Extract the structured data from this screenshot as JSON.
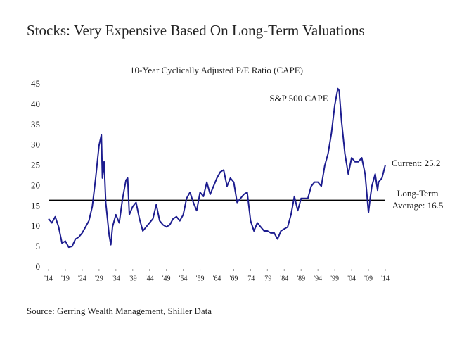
{
  "chart_data": {
    "type": "line",
    "title": "Stocks: Very Expensive Based On Long-Term Valuations",
    "subtitle": "10-Year Cyclically Adjusted P/E Ratio (CAPE)",
    "source": "Source: Gerring Wealth Management, Shiller Data",
    "x": [
      1914,
      1915,
      1916,
      1917,
      1918,
      1919,
      1920,
      1921,
      1922,
      1923,
      1924,
      1925,
      1926,
      1927,
      1928,
      1929,
      1929.7,
      1930,
      1930.5,
      1931,
      1932,
      1932.5,
      1933,
      1934,
      1935,
      1936,
      1937,
      1937.5,
      1938,
      1939,
      1940,
      1941,
      1942,
      1943,
      1944,
      1945,
      1946,
      1947,
      1948,
      1949,
      1950,
      1951,
      1952,
      1953,
      1954,
      1955,
      1956,
      1957,
      1958,
      1959,
      1960,
      1961,
      1962,
      1963,
      1964,
      1965,
      1966,
      1967,
      1968,
      1969,
      1970,
      1971,
      1972,
      1973,
      1974,
      1975,
      1976,
      1977,
      1978,
      1979,
      1980,
      1981,
      1982,
      1983,
      1984,
      1985,
      1986,
      1987,
      1988,
      1989,
      1990,
      1991,
      1992,
      1993,
      1994,
      1995,
      1996,
      1997,
      1998,
      1999,
      1999.9,
      2000.3,
      2001,
      2002,
      2003,
      2004,
      2005,
      2006,
      2007,
      2008,
      2009,
      2009.5,
      2010,
      2011,
      2011.7,
      2012,
      2013,
      2014
    ],
    "series": [
      {
        "name": "S&P 500 CAPE",
        "color": "#1c1c8f",
        "values": [
          12,
          11,
          12.5,
          10,
          6,
          6.5,
          5,
          5.2,
          7,
          7.5,
          8.5,
          10,
          11.5,
          15,
          22,
          30,
          32.6,
          22,
          26,
          16,
          8,
          5.6,
          10,
          13,
          11,
          17,
          21.5,
          22,
          13,
          15,
          16,
          12,
          9,
          10,
          11,
          12,
          15.5,
          11.5,
          10.5,
          10,
          10.5,
          12,
          12.5,
          11.5,
          13,
          17,
          18.5,
          16,
          14,
          18.5,
          17.5,
          21,
          18,
          20,
          22,
          23.5,
          24,
          20,
          22,
          21,
          16,
          17,
          18,
          18.5,
          11.5,
          9,
          11,
          10,
          9,
          9,
          8.5,
          8.5,
          7,
          9,
          9.5,
          10,
          13,
          17.5,
          14,
          17,
          17,
          17,
          20,
          21,
          21,
          20,
          25,
          28,
          33,
          40,
          44,
          43.5,
          36,
          28,
          23,
          27,
          26,
          26,
          27,
          23,
          13.5,
          17,
          20,
          23,
          19,
          21,
          22,
          25.2
        ]
      }
    ],
    "current_label": "Current: 25.2",
    "average": 16.5,
    "average_label": [
      "Long-Term",
      "Average: 16.5"
    ],
    "xlim": [
      1914,
      2014
    ],
    "xticks": [
      {
        "value": 1914,
        "label": "'14"
      },
      {
        "value": 1919,
        "label": "'19"
      },
      {
        "value": 1924,
        "label": "'24"
      },
      {
        "value": 1929,
        "label": "'29"
      },
      {
        "value": 1934,
        "label": "'34"
      },
      {
        "value": 1939,
        "label": "'39"
      },
      {
        "value": 1944,
        "label": "'44"
      },
      {
        "value": 1949,
        "label": "'49"
      },
      {
        "value": 1954,
        "label": "'54"
      },
      {
        "value": 1959,
        "label": "'59"
      },
      {
        "value": 1964,
        "label": "'64"
      },
      {
        "value": 1969,
        "label": "'69"
      },
      {
        "value": 1974,
        "label": "'74"
      },
      {
        "value": 1979,
        "label": "'79"
      },
      {
        "value": 1984,
        "label": "'84"
      },
      {
        "value": 1989,
        "label": "'89"
      },
      {
        "value": 1994,
        "label": "'94"
      },
      {
        "value": 1999,
        "label": "'99"
      },
      {
        "value": 2004,
        "label": "'04"
      },
      {
        "value": 2009,
        "label": "'09"
      },
      {
        "value": 2014,
        "label": "'14"
      }
    ],
    "ylim": [
      0,
      45
    ],
    "yticks": [
      0,
      5,
      10,
      15,
      20,
      25,
      30,
      35,
      40,
      45
    ],
    "grid": false
  }
}
